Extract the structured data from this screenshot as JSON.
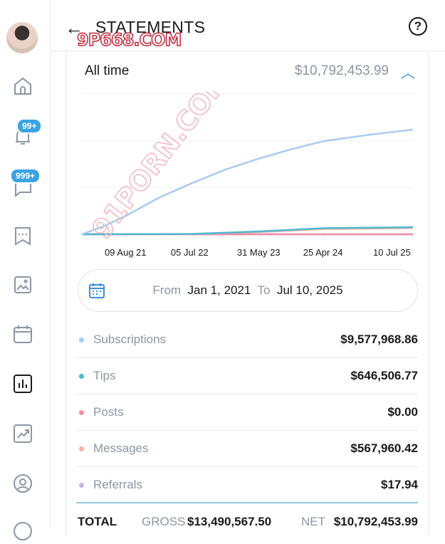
{
  "header": {
    "title": "STATEMENTS",
    "back_icon": "arrow-left-icon",
    "help_icon": "question-circle-icon"
  },
  "watermarks": [
    "9P668.COM",
    "91PORN.COM"
  ],
  "sidebar": {
    "items": [
      {
        "name": "home",
        "icon": "home-icon"
      },
      {
        "name": "notifications",
        "icon": "bell-icon",
        "badge": "99+"
      },
      {
        "name": "messages",
        "icon": "message-icon",
        "badge": "999+"
      },
      {
        "name": "collections",
        "icon": "bookmark-stars-icon"
      },
      {
        "name": "vault",
        "icon": "image-icon"
      },
      {
        "name": "queue",
        "icon": "calendar-icon"
      },
      {
        "name": "statistics",
        "icon": "bar-chart-icon",
        "active": true
      },
      {
        "name": "statements",
        "icon": "trending-chart-icon"
      },
      {
        "name": "profile",
        "icon": "user-circle-icon"
      }
    ]
  },
  "summary": {
    "label": "All time",
    "amount": "$10,792,453.99"
  },
  "chart_data": {
    "type": "line",
    "title": "",
    "xlabel": "",
    "ylabel": "",
    "x_ticks": [
      "09 Aug 21",
      "05 Jul 22",
      "31 May 23",
      "25 Apr 24",
      "10 Jul 25"
    ],
    "x_tick_dates": [
      "2021-08-09",
      "2022-07-05",
      "2023-05-31",
      "2024-04-25",
      "2025-07-10"
    ],
    "xlim": [
      "2021-01-01",
      "2025-07-10"
    ],
    "ylim": [
      0,
      12840000
    ],
    "grid": true,
    "series": [
      {
        "name": "Subscriptions",
        "color": "#a9cbf1",
        "x": [
          "2021-01-01",
          "2021-04-15",
          "2021-08-09",
          "2022-01-15",
          "2022-07-05",
          "2022-12-15",
          "2023-05-31",
          "2023-11-15",
          "2024-04-25",
          "2024-12-01",
          "2025-07-10"
        ],
        "y": [
          0,
          700000,
          1690000,
          3300000,
          4690000,
          5900000,
          6910000,
          7800000,
          8540000,
          9100000,
          9578000
        ]
      },
      {
        "name": "Tips",
        "color": "#4fb8cf",
        "x": [
          "2021-01-01",
          "2022-07-05",
          "2023-05-31",
          "2024-04-25",
          "2025-07-10"
        ],
        "y": [
          0,
          30000,
          250000,
          560000,
          646500
        ]
      },
      {
        "name": "Posts",
        "color": "#ee8fa4",
        "x": [
          "2021-01-01",
          "2025-07-10"
        ],
        "y": [
          0,
          0
        ]
      },
      {
        "name": "Messages",
        "color": "#f4b2a0",
        "x": [
          "2021-01-01",
          "2022-07-05",
          "2023-05-31",
          "2024-04-25",
          "2025-07-10"
        ],
        "y": [
          0,
          20000,
          200000,
          480000,
          567960
        ]
      },
      {
        "name": "Referrals",
        "color": "#c7b3e6",
        "x": [
          "2021-01-01",
          "2025-07-10"
        ],
        "y": [
          0,
          18
        ]
      }
    ]
  },
  "range": {
    "from_label": "From",
    "from": "Jan 1, 2021",
    "to_label": "To",
    "to": "Jul 10, 2025",
    "icon": "calendar-icon"
  },
  "breakdown": [
    {
      "label": "Subscriptions",
      "value": "$9,577,968.86",
      "color": "#a9cbf1"
    },
    {
      "label": "Tips",
      "value": "$646,506.77",
      "color": "#4fb8cf"
    },
    {
      "label": "Posts",
      "value": "$0.00",
      "color": "#ee8fa4"
    },
    {
      "label": "Messages",
      "value": "$567,960.42",
      "color": "#f4b2a0"
    },
    {
      "label": "Referrals",
      "value": "$17.94",
      "color": "#c7b3e6"
    }
  ],
  "total": {
    "label": "TOTAL",
    "gross_label": "GROSS",
    "gross": "$13,490,567.50",
    "net_label": "NET",
    "net": "$10,792,453.99"
  }
}
